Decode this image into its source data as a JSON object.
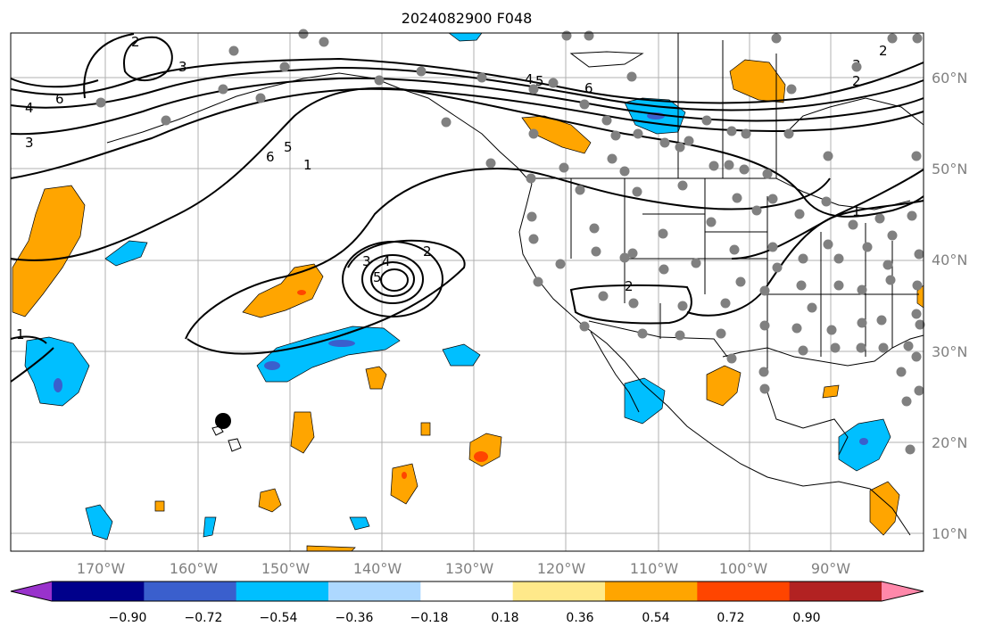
{
  "title": "2024082900 F048",
  "lon_labels": [
    "170°W",
    "160°W",
    "150°W",
    "140°W",
    "130°W",
    "120°W",
    "110°W",
    "100°W",
    "90°W"
  ],
  "lat_labels": [
    "60°N",
    "50°N",
    "40°N",
    "30°N",
    "20°N",
    "10°N"
  ],
  "colorbar": {
    "tick_labels": [
      "−0.90",
      "−0.72",
      "−0.54",
      "−0.36",
      "−0.18",
      "0.18",
      "0.36",
      "0.54",
      "0.72",
      "0.90"
    ],
    "colors": [
      "#9932cc",
      "#00008b",
      "#3a5fcd",
      "#00bfff",
      "#add8ff",
      "#ffffff",
      "#ffe98a",
      "#ffa500",
      "#ff4500",
      "#b22222",
      "#ff88aa"
    ]
  },
  "contour_labels": [
    "1",
    "2",
    "2",
    "3",
    "3",
    "3",
    "4",
    "4",
    "5",
    "5",
    "6",
    "6",
    "6",
    "2",
    "1",
    "2",
    "3",
    "4",
    "5",
    "1",
    "2"
  ],
  "colors": {
    "orange": "#ffa500",
    "red": "#ff4500",
    "cyan": "#00bfff",
    "blue": "#3a5fcd",
    "station": "#808080",
    "contour": "#000000"
  },
  "marker": {
    "name": "black-dot-marker"
  }
}
